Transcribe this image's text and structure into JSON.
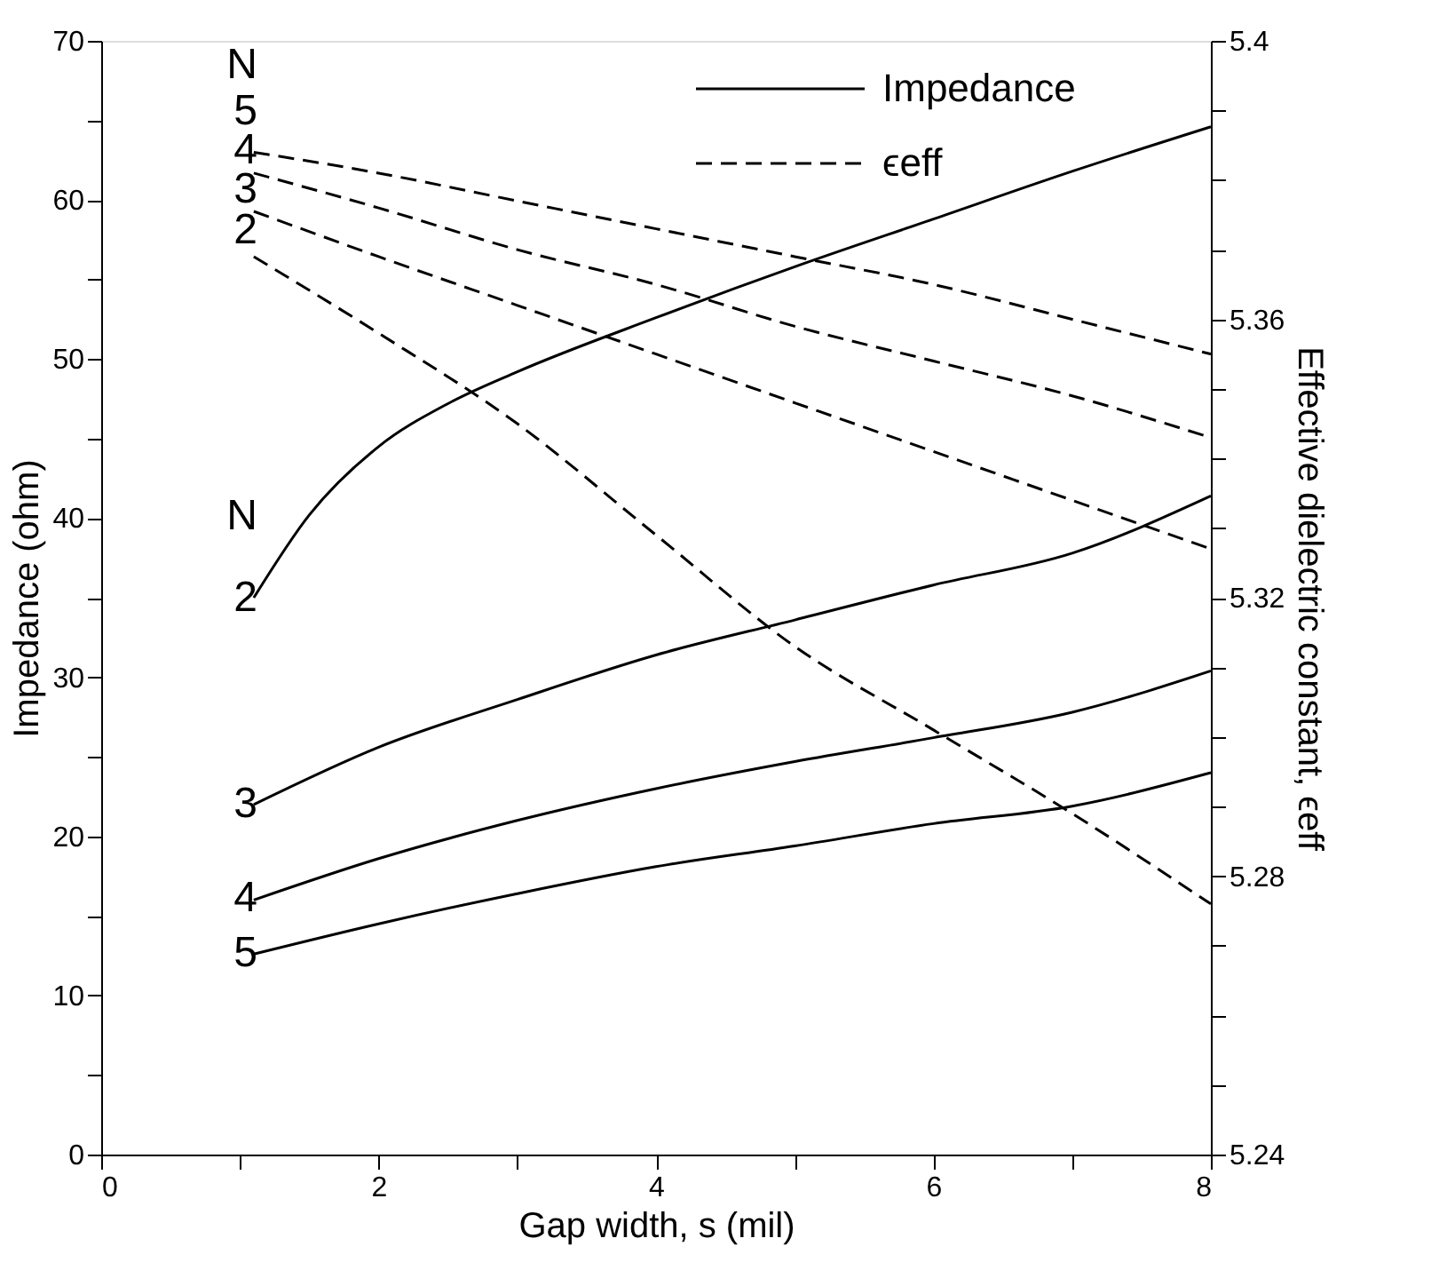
{
  "chart_data": {
    "type": "line",
    "xlabel": "Gap width, s (mil)",
    "ylabel": "Impedance  (ohm)",
    "y2label": "Effective dielectric constant, ϵeff",
    "xlim": [
      0,
      8
    ],
    "xticks": [
      0,
      {
        "value": 1,
        "label": null
      },
      2,
      {
        "value": 3,
        "label": null
      },
      4,
      {
        "value": 5,
        "label": null
      },
      6,
      {
        "value": 7,
        "label": null
      },
      8
    ],
    "ylim": [
      0,
      70
    ],
    "yticks": [
      0,
      {
        "value": 5,
        "label": null
      },
      10,
      {
        "value": 15,
        "label": null
      },
      20,
      {
        "value": 25,
        "label": null
      },
      30,
      {
        "value": 35,
        "label": null
      },
      40,
      {
        "value": 45,
        "label": null
      },
      50,
      {
        "value": 55,
        "label": null
      },
      60,
      {
        "value": 65,
        "label": null
      },
      70
    ],
    "y2lim": [
      5.24,
      5.4
    ],
    "y2ticks": [
      5.24,
      {
        "value": 5.25,
        "label": null
      },
      {
        "value": 5.26,
        "label": null
      },
      {
        "value": 5.27,
        "label": null
      },
      5.28,
      {
        "value": 5.29,
        "label": null
      },
      {
        "value": 5.3,
        "label": null
      },
      {
        "value": 5.31,
        "label": null
      },
      5.32,
      {
        "value": 5.33,
        "label": null
      },
      {
        "value": 5.34,
        "label": null
      },
      {
        "value": 5.35,
        "label": null
      },
      5.36,
      {
        "value": 5.37,
        "label": null
      },
      {
        "value": 5.38,
        "label": null
      },
      {
        "value": 5.39,
        "label": null
      },
      5.4
    ],
    "grid": false,
    "legend": "top right",
    "marker": "none",
    "x": [
      1.1,
      2,
      3,
      4,
      5,
      6,
      7,
      8
    ],
    "series": [
      {
        "name": "Impedance",
        "color": "#000000",
        "line_style": "solid",
        "x": [
          1.1,
          1.5,
          2,
          2.5,
          3,
          4,
          5,
          6,
          7,
          8
        ],
        "values": [
          35,
          40.2,
          44.5,
          47.2,
          49.2,
          52.6,
          55.8,
          58.8,
          61.8,
          64.6
        ]
      },
      {
        "color": "#000000",
        "line_style": "solid",
        "values": [
          22,
          25.6,
          28.6,
          31.4,
          33.6,
          35.8,
          37.8,
          41.4
        ]
      },
      {
        "color": "#000000",
        "line_style": "solid",
        "values": [
          16,
          18.6,
          21,
          23,
          24.7,
          26.2,
          27.8,
          30.4
        ]
      },
      {
        "color": "#000000",
        "line_style": "solid",
        "values": [
          12.6,
          14.5,
          16.4,
          18.1,
          19.4,
          20.8,
          21.9,
          24
        ]
      },
      {
        "name": "ϵeff",
        "color": "#000000",
        "line_style": "dashed",
        "axis": "y2",
        "values": [
          5.369,
          5.358,
          5.345,
          5.329,
          5.313,
          5.301,
          5.289,
          5.276
        ]
      },
      {
        "color": "#000000",
        "line_style": "dashed",
        "axis": "y2",
        "values": [
          5.3755,
          5.369,
          5.362,
          5.355,
          5.348,
          5.341,
          5.334,
          5.327
        ]
      },
      {
        "color": "#000000",
        "line_style": "dashed",
        "axis": "y2",
        "values": [
          5.381,
          5.376,
          5.37,
          5.365,
          5.359,
          5.354,
          5.349,
          5.343
        ]
      },
      {
        "color": "#000000",
        "line_style": "dashed",
        "axis": "y2",
        "values": [
          5.384,
          5.381,
          5.377,
          5.373,
          5.369,
          5.365,
          5.36,
          5.355
        ]
      }
    ],
    "annotations": [
      "N",
      "5",
      "4",
      "3",
      "2",
      "N",
      "2",
      "3",
      "4",
      "5"
    ]
  }
}
